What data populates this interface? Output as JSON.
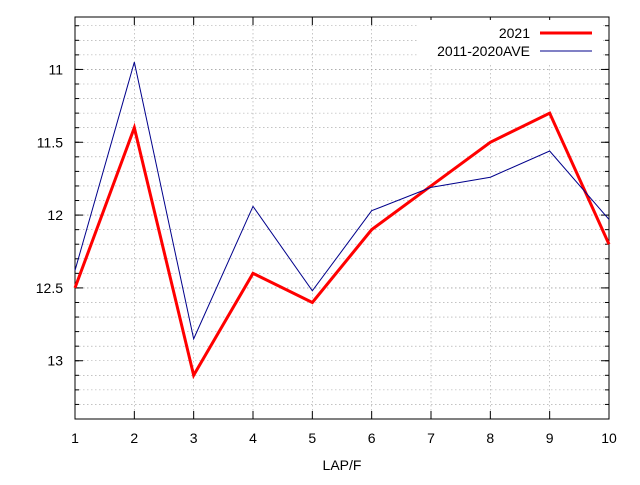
{
  "chart_data": {
    "type": "line",
    "xlabel": "LAP/F",
    "x": [
      1,
      2,
      3,
      4,
      5,
      6,
      7,
      8,
      9,
      10
    ],
    "series": [
      {
        "name": "2021",
        "color": "#ff0000",
        "width": 3,
        "values": [
          12.5,
          11.4,
          13.1,
          12.4,
          12.6,
          12.1,
          11.8,
          11.5,
          11.3,
          12.2
        ]
      },
      {
        "name": "2011-2020AVE",
        "color": "#00008b",
        "width": 1,
        "values": [
          12.38,
          10.95,
          12.85,
          11.94,
          12.52,
          11.97,
          11.81,
          11.74,
          11.56,
          12.03
        ]
      }
    ],
    "xlim": [
      1,
      10
    ],
    "xticks": [
      1,
      2,
      3,
      4,
      5,
      6,
      7,
      8,
      9,
      10
    ],
    "ylim": [
      10.64,
      13.4
    ],
    "yticks": [
      11,
      11.5,
      12,
      12.5,
      13
    ],
    "y_reversed": true,
    "y_minor_step": 0.1,
    "grid": true,
    "legend": "top-right"
  }
}
